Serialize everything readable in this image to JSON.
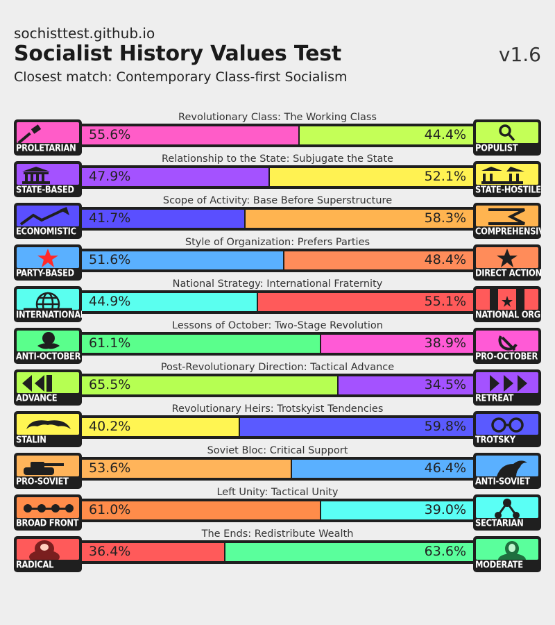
{
  "header": {
    "site": "sochisttest.github.io",
    "title": "Socialist History Values Test",
    "version": "v1.6",
    "closest_match": "Closest match: Contemporary Class-first Socialism"
  },
  "axes": [
    {
      "label": "Revolutionary Class: The Working Class",
      "left": {
        "name": "PROLETARIAN",
        "icon": "hammer-icon",
        "color": "#ff5cc8",
        "pct_value": 55.6,
        "pct": "55.6%"
      },
      "right": {
        "name": "POPULIST",
        "icon": "magnifier-icon",
        "color": "#c4ff57",
        "pct_value": 44.4,
        "pct": "44.4%"
      }
    },
    {
      "label": "Relationship to the State: Subjugate the State",
      "left": {
        "name": "STATE-BASED",
        "icon": "government-building-icon",
        "color": "#a452ff",
        "pct_value": 47.9,
        "pct": "47.9%"
      },
      "right": {
        "name": "STATE-HOSTILE",
        "icon": "broken-building-icon",
        "color": "#fff252",
        "pct_value": 52.1,
        "pct": "52.1%"
      }
    },
    {
      "label": "Scope of Activity: Base Before Superstructure",
      "left": {
        "name": "ECONOMISTIC",
        "icon": "rising-graph-icon",
        "color": "#5a4fff",
        "pct_value": 41.7,
        "pct": "41.7%"
      },
      "right": {
        "name": "COMPREHENSIVE",
        "icon": "crossed-arrows-icon",
        "color": "#ffb450",
        "pct_value": 58.3,
        "pct": "58.3%"
      }
    },
    {
      "label": "Style of Organization: Prefers Parties",
      "left": {
        "name": "PARTY-BASED",
        "icon": "red-star-icon",
        "color": "#5ab0ff",
        "pct_value": 51.6,
        "pct": "51.6%"
      },
      "right": {
        "name": "DIRECT ACTION",
        "icon": "black-star-icon",
        "color": "#ff8c5a",
        "pct_value": 48.4,
        "pct": "48.4%"
      }
    },
    {
      "label": "National Strategy: International Fraternity",
      "left": {
        "name": "INTERNATIONAL",
        "icon": "globe-icon",
        "color": "#5affef",
        "pct_value": 44.9,
        "pct": "44.9%"
      },
      "right": {
        "name": "NATIONAL ORG",
        "icon": "flag-star-icon",
        "color": "#ff5a5a",
        "pct_value": 55.1,
        "pct": "55.1%"
      }
    },
    {
      "label": "Lessons of October: Two-Stage Revolution",
      "left": {
        "name": "ANTI-OCTOBER",
        "icon": "rose-icon",
        "color": "#5aff8c",
        "pct_value": 61.1,
        "pct": "61.1%"
      },
      "right": {
        "name": "PRO-OCTOBER",
        "icon": "hammer-sickle-icon",
        "color": "#ff5ad6",
        "pct_value": 38.9,
        "pct": "38.9%"
      }
    },
    {
      "label": "Post-Revolutionary Direction: Tactical Advance",
      "left": {
        "name": "ADVANCE",
        "icon": "rewind-arrows-icon",
        "color": "#b6ff52",
        "pct_value": 65.5,
        "pct": "65.5%"
      },
      "right": {
        "name": "RETREAT",
        "icon": "forward-arrows-icon",
        "color": "#a452ff",
        "pct_value": 34.5,
        "pct": "34.5%"
      }
    },
    {
      "label": "Revolutionary Heirs: Trotskyist Tendencies",
      "left": {
        "name": "STALIN",
        "icon": "mustache-icon",
        "color": "#fff552",
        "pct_value": 40.2,
        "pct": "40.2%"
      },
      "right": {
        "name": "TROTSKY",
        "icon": "glasses-icon",
        "color": "#5a5aff",
        "pct_value": 59.8,
        "pct": "59.8%"
      }
    },
    {
      "label": "Soviet Bloc: Critical Support",
      "left": {
        "name": "PRO-SOVIET",
        "icon": "tank-icon",
        "color": "#ffb45a",
        "pct_value": 53.6,
        "pct": "53.6%"
      },
      "right": {
        "name": "ANTI-SOVIET",
        "icon": "silhouette-icon",
        "color": "#5ab0ff",
        "pct_value": 46.4,
        "pct": "46.4%"
      }
    },
    {
      "label": "Left Unity: Tactical Unity",
      "left": {
        "name": "BROAD FRONT",
        "icon": "linked-dots-icon",
        "color": "#ff8c4a",
        "pct_value": 61.0,
        "pct": "61.0%"
      },
      "right": {
        "name": "SECTARIAN",
        "icon": "network-node-icon",
        "color": "#5afff5",
        "pct_value": 39.0,
        "pct": "39.0%"
      }
    },
    {
      "label": "The Ends: Redistribute Wealth",
      "left": {
        "name": "RADICAL",
        "icon": "marx-portrait-icon",
        "color": "#ff5a5a",
        "pct_value": 36.4,
        "pct": "36.4%"
      },
      "right": {
        "name": "MODERATE",
        "icon": "portrait-icon",
        "color": "#5aff9c",
        "pct_value": 63.6,
        "pct": "63.6%"
      }
    }
  ]
}
